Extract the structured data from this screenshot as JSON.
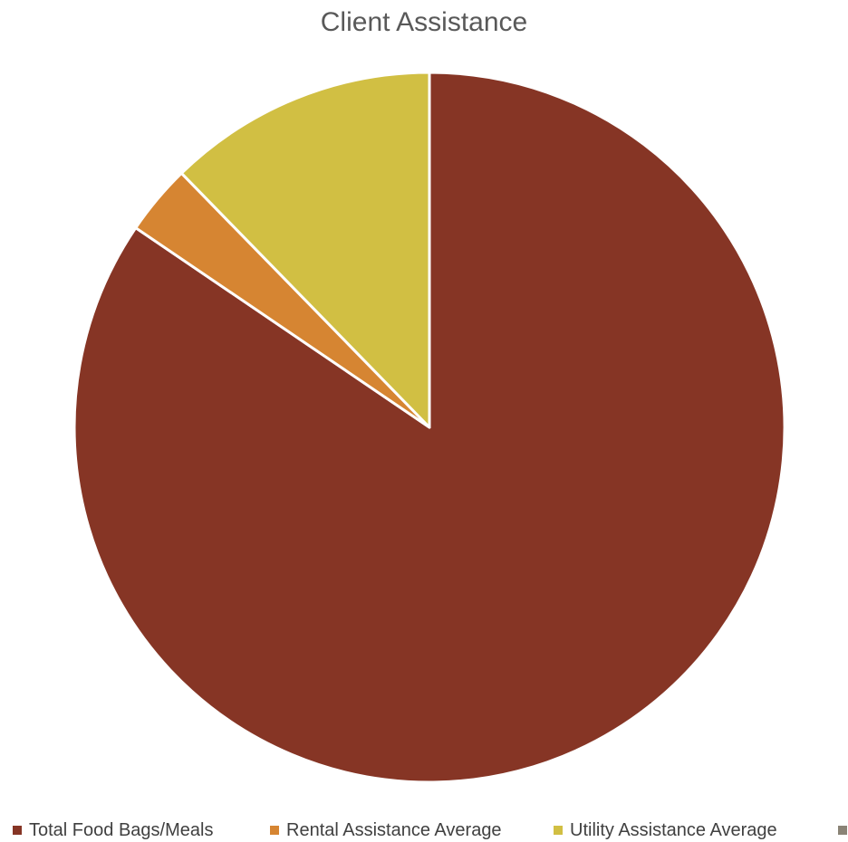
{
  "chart_data": {
    "type": "pie",
    "title": "Client Assistance",
    "categories": [
      "Total Food Bags/Meals",
      "Rental Assistance Average",
      "Utility Assistance Average",
      ""
    ],
    "values": [
      84.5,
      3.2,
      12.3,
      0
    ],
    "colors": [
      "#863525",
      "#D68532",
      "#D1BF43",
      "#8A8376"
    ],
    "start_angle_deg": 0,
    "direction": "clockwise",
    "legend_position": "bottom"
  }
}
